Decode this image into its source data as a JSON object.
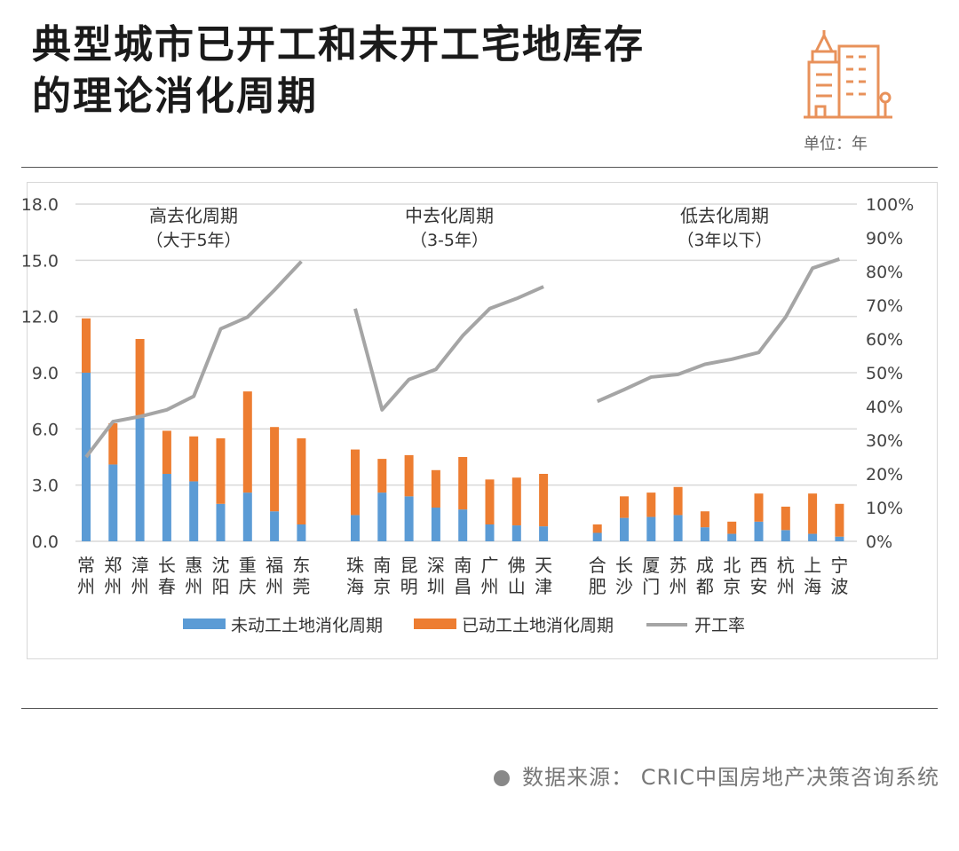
{
  "header": {
    "title_line1": "典型城市已开工和未开工宅地库存",
    "title_line2": "的理论消化周期",
    "unit": "单位：年",
    "icon": "city-buildings-icon"
  },
  "footer": {
    "source": "数据来源：  CRIC中国房地产决策咨询系统"
  },
  "colors": {
    "unstarted": "#5B9BD5",
    "started": "#ED7D31",
    "rate": "#A5A5A5",
    "accent": "#E8915A"
  },
  "chart_data": {
    "type": "bar",
    "stacked": true,
    "title": "",
    "left_axis": {
      "min": 0,
      "max": 18,
      "ticks": [
        "0.0",
        "3.0",
        "6.0",
        "9.0",
        "12.0",
        "15.0",
        "18.0"
      ]
    },
    "right_axis": {
      "min": 0,
      "max": 100,
      "ticks": [
        "0%",
        "10%",
        "20%",
        "30%",
        "40%",
        "50%",
        "60%",
        "70%",
        "80%",
        "90%",
        "100%"
      ]
    },
    "grid": true,
    "legend_position": "bottom",
    "group_labels": [
      {
        "name": "高去化周期",
        "sub": "（大于5年）"
      },
      {
        "name": "中去化周期",
        "sub": "（3-5年）"
      },
      {
        "name": "低去化周期",
        "sub": "（3年以下）"
      }
    ],
    "categories": [
      "常州",
      "郑州",
      "漳州",
      "长春",
      "惠州",
      "沈阳",
      "重庆",
      "福州",
      "东莞",
      "",
      "珠海",
      "南京",
      "昆明",
      "深圳",
      "南昌",
      "广州",
      "佛山",
      "天津",
      "",
      "合肥",
      "长沙",
      "厦门",
      "苏州",
      "成都",
      "北京",
      "西安",
      "杭州",
      "上海",
      "宁波"
    ],
    "series": [
      {
        "name": "未动工土地消化周期",
        "type": "bar",
        "values": [
          9.0,
          4.1,
          6.6,
          3.6,
          3.2,
          2.0,
          2.6,
          1.6,
          0.9,
          null,
          1.4,
          2.6,
          2.4,
          1.8,
          1.7,
          0.9,
          0.85,
          0.8,
          null,
          0.45,
          1.25,
          1.3,
          1.4,
          0.75,
          0.4,
          1.05,
          0.6,
          0.4,
          0.25
        ]
      },
      {
        "name": "已动工土地消化周期",
        "type": "bar",
        "values": [
          2.9,
          2.2,
          4.2,
          2.3,
          2.4,
          3.5,
          5.4,
          4.5,
          4.6,
          null,
          3.5,
          1.8,
          2.2,
          2.0,
          2.8,
          2.4,
          2.55,
          2.8,
          null,
          0.45,
          1.15,
          1.3,
          1.5,
          0.85,
          0.65,
          1.5,
          1.25,
          2.15,
          1.75
        ]
      },
      {
        "name": "开工率",
        "type": "line",
        "axis": "right",
        "values": [
          25,
          35.5,
          37,
          39,
          43,
          63,
          66.5,
          74.5,
          83,
          null,
          69,
          39,
          48,
          51,
          61,
          69,
          72,
          75.5,
          null,
          41.5,
          45,
          48.7,
          49.5,
          52.5,
          54,
          56,
          66.5,
          81,
          83.7
        ]
      }
    ]
  }
}
